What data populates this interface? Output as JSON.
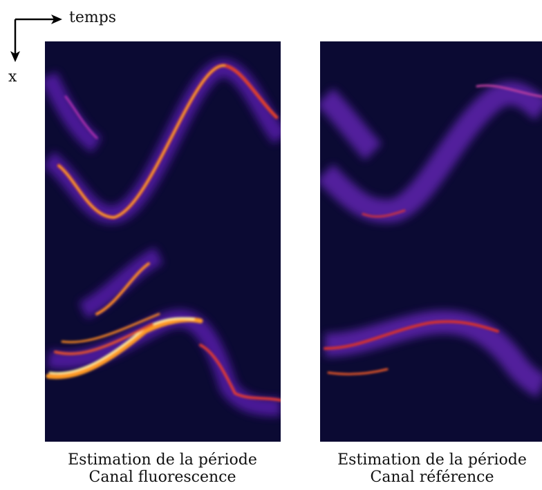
{
  "axes": {
    "horizontal": "temps",
    "vertical": "x"
  },
  "panels": [
    {
      "caption": [
        "Estimation de la période",
        "Canal fluorescence"
      ]
    },
    {
      "caption": [
        "Estimation de la période",
        "Canal référence"
      ]
    }
  ]
}
